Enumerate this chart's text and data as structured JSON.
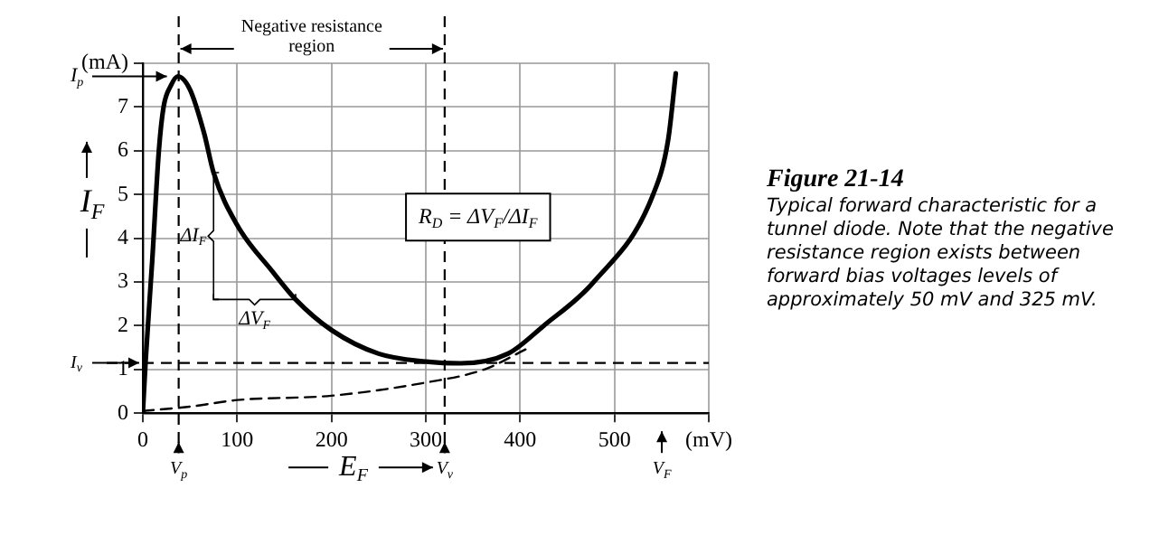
{
  "chart_data": {
    "type": "line",
    "title": "Figure 21-14",
    "subtitle": "Typical forward characteristic for a tunnel diode. Note that the negative resistance region exists between forward bias voltages levels of approximately 50 mV and 325 mV.",
    "xlabel": "E$_{F}$",
    "ylabel": "I$_{F}$",
    "series": [
      {
        "color": "#000000",
        "line_style": "solid",
        "x": [
          0,
          3,
          10,
          17,
          22,
          30,
          37,
          50,
          65,
          75,
          100,
          137,
          162,
          200,
          250,
          300,
          337,
          387,
          425,
          478,
          541,
          557,
          565
        ],
        "values": [
          0,
          1.2,
          3.5,
          6,
          7,
          7.5,
          7.7,
          7.4,
          6.4,
          5.5,
          4.3,
          3.25,
          2.6,
          1.9,
          1.36,
          1.18,
          1.14,
          1.36,
          2,
          3,
          5,
          6.26,
          7.77
        ]
      },
      {
        "color": "#000000",
        "line_style": "dashed",
        "x": [
          0,
          50,
          100,
          200,
          300,
          362,
          406
        ],
        "values": [
          0.05,
          0.15,
          0.3,
          0.4,
          0.7,
          1,
          1.46
        ]
      }
    ],
    "xlim": [
      0,
      600
    ],
    "xticks": [
      0,
      100,
      200,
      300,
      400,
      500,
      {
        "value": 600,
        "label": "(mV)"
      }
    ],
    "ylim": [
      0,
      8
    ],
    "yticks": [
      0,
      1,
      2,
      3,
      4,
      5,
      6,
      7,
      {
        "value": 8,
        "label": "(mA)"
      }
    ],
    "grid": true,
    "legend": false,
    "ref_lines": [
      {
        "axis": "x",
        "value": 38,
        "label": "V$_{p}$",
        "line_style": "dashed"
      },
      {
        "axis": "x",
        "value": 320,
        "label": "V$_{v}$",
        "line_style": "dashed"
      },
      {
        "axis": "y",
        "value": 1.15,
        "label": "I$_{v}$",
        "line_style": "dashed"
      }
    ],
    "annotations": [
      "Negative resistance region",
      "I$_{p}$",
      "R$_{D}$ = ΔV$_{F}$/ΔI$_{F}$",
      {
        "text": "ΔI$_{F}$",
        "x": 75,
        "y": 5.5
      },
      {
        "text": "ΔV$_{F}$",
        "x": 162,
        "y": 2.6
      },
      "V$_{F}$"
    ]
  }
}
